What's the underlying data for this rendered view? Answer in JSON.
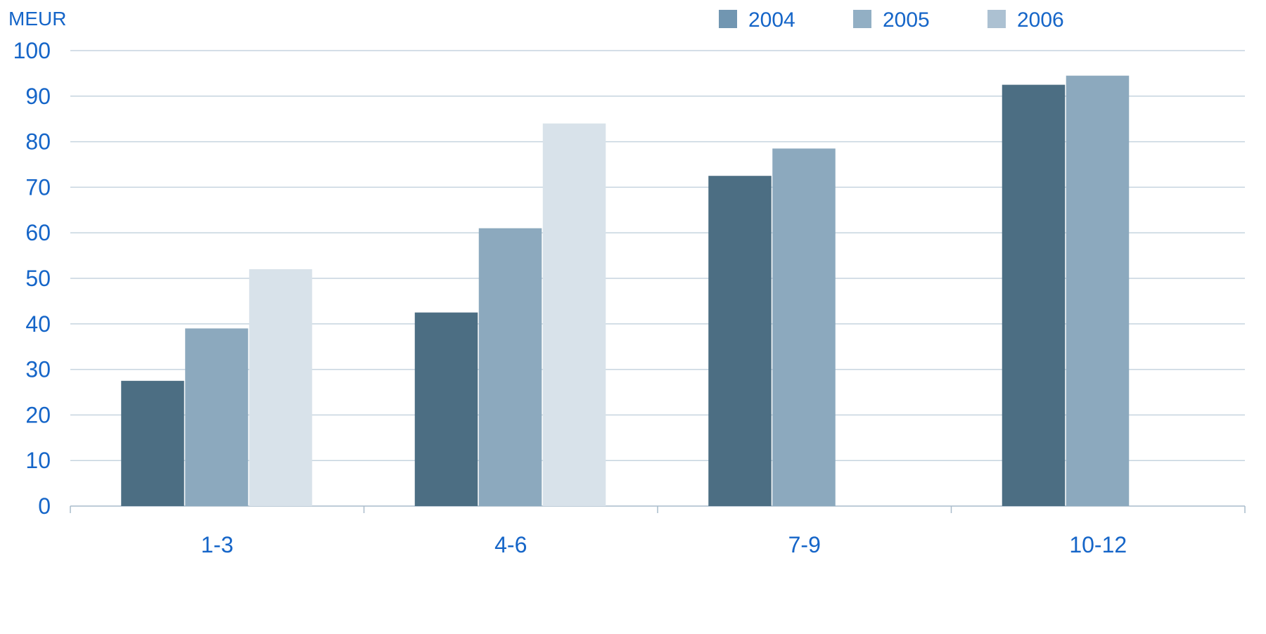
{
  "chart_data": {
    "type": "bar",
    "unit_label": "MEUR",
    "categories": [
      "1-3",
      "4-6",
      "7-9",
      "10-12"
    ],
    "series": [
      {
        "name": "2004",
        "values": [
          27.5,
          42.5,
          72.5,
          92.5
        ],
        "color": "#4c6e83"
      },
      {
        "name": "2005",
        "values": [
          39,
          61,
          78.5,
          94.5
        ],
        "color": "#8ca9be"
      },
      {
        "name": "2006",
        "values": [
          52,
          84,
          null,
          null
        ],
        "color": "#d8e2ea"
      }
    ],
    "legend_colors": [
      "#7196b1",
      "#92afc4",
      "#acc1d2"
    ],
    "ylim": [
      0,
      100
    ],
    "yticks": [
      0,
      10,
      20,
      30,
      40,
      50,
      60,
      70,
      80,
      90,
      100
    ],
    "grid": true,
    "legend_position": "top-right",
    "text_color": "#1565c8",
    "grid_color": "#c6d4df"
  }
}
